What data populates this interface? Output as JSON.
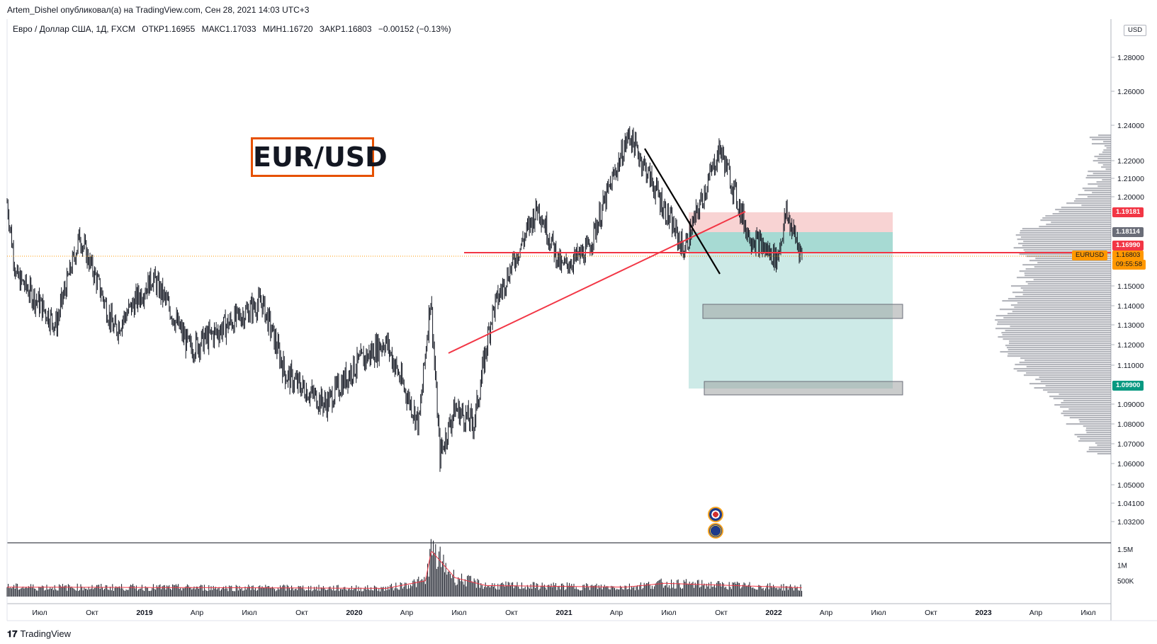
{
  "header": {
    "publisher": "Artem_Dishel опубликовал(а) на TradingView.com, Сен 28, 2021 14:03 UTC+3"
  },
  "legend": {
    "symbol": "Евро / Доллар США, 1Д, FXCM",
    "open": "ОТКР1.16955",
    "high": "МАКС1.17033",
    "low": "МИН1.16720",
    "close": "ЗАКР1.16803",
    "change": "−0.00152 (−0.13%)"
  },
  "annotation": {
    "title": "EUR/USD"
  },
  "price_tags": {
    "currency": "USD",
    "stop": "1.19181",
    "entry": "1.18114",
    "level": "1.16990",
    "symbol_tag": "EURUSD",
    "last": "1.16803",
    "countdown": "09:55:58",
    "target": "1.09900"
  },
  "footer": {
    "brand": "TradingView"
  },
  "colors": {
    "candles": "#131722",
    "trendline_red": "#f23645",
    "trendline_black": "#000000",
    "stop_zone": "#f8d3d3",
    "target_zone": "#cdeae7",
    "entry_zone": "#a7dad3",
    "last_price": "#ff9800",
    "target_tag": "#089981",
    "volume_ma": "#f23645",
    "title_border": "#e65100"
  },
  "chart_data": [
    {
      "type": "candlestick",
      "symbol": "EURUSD",
      "timeframe": "1D",
      "y_axis": {
        "ticks": [
          "1.28000",
          "1.26000",
          "1.24000",
          "1.22000",
          "1.21000",
          "1.20000",
          "1.15000",
          "1.14000",
          "1.13000",
          "1.12000",
          "1.11000",
          "1.09000",
          "1.08000",
          "1.07000",
          "1.06000",
          "1.05000",
          "1.04100",
          "1.03200"
        ],
        "ylim": [
          1.025,
          1.295
        ],
        "scale": "log"
      },
      "x_axis": {
        "ticks": [
          "Июл",
          "Окт",
          "2019",
          "Апр",
          "Июл",
          "Окт",
          "2020",
          "Апр",
          "Июл",
          "Окт",
          "2021",
          "Апр",
          "Июл",
          "Окт",
          "2022",
          "Апр",
          "Июл",
          "Окт",
          "2023",
          "Апр",
          "Июл"
        ]
      },
      "price_path": {
        "x": [
          "2018-06-01",
          "2018-06-15",
          "2018-08-15",
          "2018-09-20",
          "2018-11-12",
          "2019-01-10",
          "2019-03-07",
          "2019-04-15",
          "2019-06-25",
          "2019-08-01",
          "2019-10-01",
          "2019-11-10",
          "2019-12-31",
          "2020-02-20",
          "2020-03-09",
          "2020-03-23",
          "2020-04-15",
          "2020-05-14",
          "2020-06-10",
          "2020-07-20",
          "2020-08-20",
          "2020-09-25",
          "2020-11-04",
          "2021-01-06",
          "2021-02-10",
          "2021-03-31",
          "2021-05-25",
          "2021-07-07",
          "2021-08-20",
          "2021-09-03",
          "2021-09-28"
        ],
        "close": [
          1.197,
          1.156,
          1.13,
          1.179,
          1.127,
          1.155,
          1.118,
          1.126,
          1.142,
          1.105,
          1.09,
          1.108,
          1.122,
          1.08,
          1.145,
          1.064,
          1.088,
          1.08,
          1.135,
          1.17,
          1.195,
          1.161,
          1.171,
          1.235,
          1.208,
          1.171,
          1.227,
          1.18,
          1.166,
          1.191,
          1.168
        ]
      },
      "horizontal_levels": [
        1.1699
      ],
      "trendlines": [
        {
          "name": "support",
          "from": [
            "2020-06-10",
            1.117
          ],
          "to": [
            "2021-10-25",
            1.192
          ]
        },
        {
          "name": "resistance",
          "from": [
            "2021-05-25",
            1.228
          ],
          "to": [
            "2021-09-30",
            1.156
          ]
        }
      ],
      "position": {
        "side": "short",
        "stop": 1.19181,
        "entry": 1.18114,
        "target": 1.099,
        "last": 1.16803
      },
      "take_profit_zones": [
        {
          "from": 1.134,
          "to": 1.141
        },
        {
          "from": 1.095,
          "to": 1.1
        }
      ],
      "volume_profile": true
    },
    {
      "type": "bar",
      "name": "volume",
      "y_axis": {
        "ticks": [
          "1.5M",
          "1M",
          "500K"
        ],
        "ylim": [
          0,
          1600000
        ]
      },
      "x": [
        "2018-06-01",
        "2019-06-01",
        "2020-01-01",
        "2020-03-01",
        "2020-03-10",
        "2020-04-15",
        "2020-06-01",
        "2021-01-01",
        "2021-03-01",
        "2021-09-28"
      ],
      "values": [
        300000,
        280000,
        260000,
        500000,
        1450000,
        600000,
        350000,
        300000,
        420000,
        280000
      ],
      "moving_average": true
    }
  ]
}
